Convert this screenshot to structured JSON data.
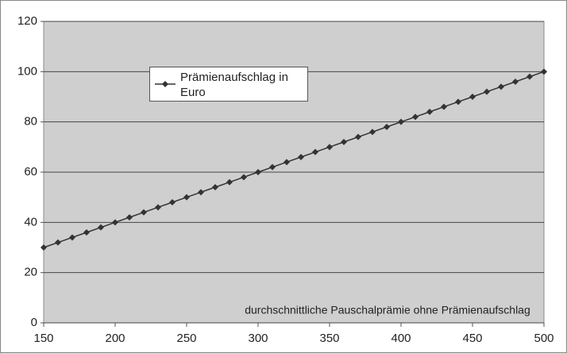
{
  "chart_data": {
    "type": "line",
    "x_label": "durchschnittliche Pauschalprämie ohne Prämienaufschlag",
    "x": [
      150,
      160,
      170,
      180,
      190,
      200,
      210,
      220,
      230,
      240,
      250,
      260,
      270,
      280,
      290,
      300,
      310,
      320,
      330,
      340,
      350,
      360,
      370,
      380,
      390,
      400,
      410,
      420,
      430,
      440,
      450,
      460,
      470,
      480,
      490,
      500
    ],
    "series": [
      {
        "name": "Prämienaufschlag in Euro",
        "color": "#333333",
        "values": [
          30,
          32,
          34,
          36,
          38,
          40,
          42,
          44,
          46,
          48,
          50,
          52,
          54,
          56,
          58,
          60,
          62,
          64,
          66,
          68,
          70,
          72,
          74,
          76,
          78,
          80,
          82,
          84,
          86,
          88,
          90,
          92,
          94,
          96,
          98,
          100
        ]
      }
    ],
    "xlim": [
      150,
      500
    ],
    "xticks": [
      150,
      200,
      250,
      300,
      350,
      400,
      450,
      500
    ],
    "ylim": [
      0,
      120
    ],
    "yticks": [
      0,
      20,
      40,
      60,
      80,
      100,
      120
    ],
    "grid": true
  }
}
